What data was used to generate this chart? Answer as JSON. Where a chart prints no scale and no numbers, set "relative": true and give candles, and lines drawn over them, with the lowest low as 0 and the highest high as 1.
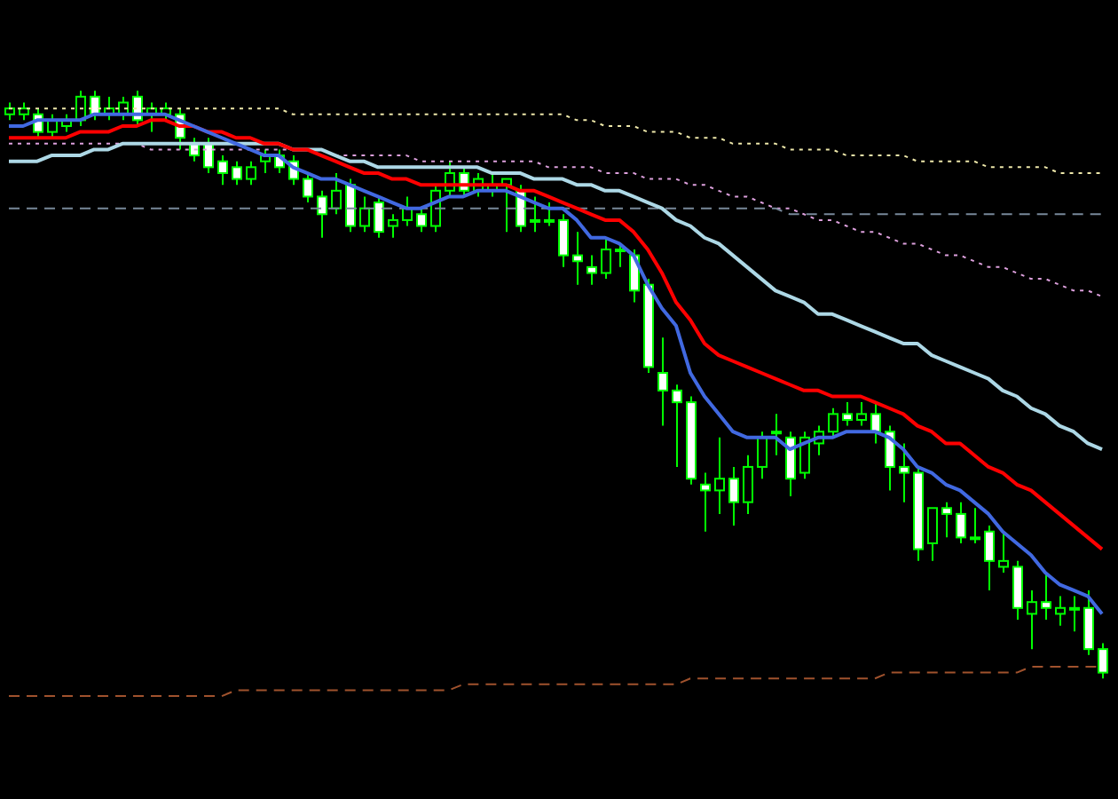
{
  "chart_data": {
    "type": "candlestick",
    "relative": true,
    "tick_labels": false,
    "color": "#00ff00",
    "categories": [
      null,
      null,
      null,
      null,
      null,
      null,
      null,
      null,
      null,
      null,
      null,
      null,
      null,
      null,
      null,
      null,
      null,
      null,
      null,
      null,
      null,
      null,
      null,
      null,
      null,
      null,
      null,
      null,
      null,
      null,
      null,
      null,
      null,
      null,
      null,
      null,
      null,
      null,
      null,
      null,
      null,
      null,
      null,
      null,
      null,
      null,
      null,
      null,
      null,
      null,
      null,
      null,
      null,
      null,
      null,
      null,
      null,
      null,
      null,
      null,
      null,
      null,
      null,
      null,
      null,
      null,
      null,
      null,
      null,
      null,
      null,
      null,
      null,
      null,
      null,
      null,
      null,
      null
    ],
    "ohlc": [
      [
        0.96,
        0.98,
        0.95,
        0.97
      ],
      [
        0.96,
        0.98,
        0.95,
        0.97
      ],
      [
        0.96,
        0.97,
        0.92,
        0.93
      ],
      [
        0.93,
        0.96,
        0.92,
        0.95
      ],
      [
        0.94,
        0.96,
        0.93,
        0.95
      ],
      [
        0.95,
        1,
        0.94,
        0.99
      ],
      [
        0.99,
        1,
        0.95,
        0.96
      ],
      [
        0.96,
        0.99,
        0.95,
        0.97
      ],
      [
        0.96,
        0.99,
        0.95,
        0.98
      ],
      [
        0.99,
        1,
        0.94,
        0.95
      ],
      [
        0.96,
        0.98,
        0.93,
        0.97
      ],
      [
        0.96,
        0.98,
        0.95,
        0.97
      ],
      [
        0.96,
        0.97,
        0.9,
        0.92
      ],
      [
        0.91,
        0.92,
        0.88,
        0.89
      ],
      [
        0.91,
        0.92,
        0.86,
        0.87
      ],
      [
        0.88,
        0.89,
        0.84,
        0.86
      ],
      [
        0.87,
        0.88,
        0.84,
        0.85
      ],
      [
        0.85,
        0.88,
        0.84,
        0.87
      ],
      [
        0.88,
        0.9,
        0.86,
        0.89
      ],
      [
        0.89,
        0.9,
        0.86,
        0.87
      ],
      [
        0.88,
        0.89,
        0.84,
        0.85
      ],
      [
        0.85,
        0.86,
        0.81,
        0.82
      ],
      [
        0.82,
        0.83,
        0.75,
        0.79
      ],
      [
        0.8,
        0.86,
        0.79,
        0.83
      ],
      [
        0.84,
        0.85,
        0.76,
        0.77
      ],
      [
        0.77,
        0.82,
        0.76,
        0.8
      ],
      [
        0.81,
        0.82,
        0.75,
        0.76
      ],
      [
        0.77,
        0.79,
        0.75,
        0.78
      ],
      [
        0.78,
        0.82,
        0.77,
        0.8
      ],
      [
        0.79,
        0.8,
        0.76,
        0.77
      ],
      [
        0.77,
        0.84,
        0.76,
        0.83
      ],
      [
        0.83,
        0.88,
        0.82,
        0.86
      ],
      [
        0.86,
        0.87,
        0.82,
        0.83
      ],
      [
        0.83,
        0.86,
        0.82,
        0.85
      ],
      [
        0.83,
        0.86,
        0.82,
        0.84
      ],
      [
        0.84,
        0.85,
        0.76,
        0.85
      ],
      [
        0.83,
        0.84,
        0.76,
        0.77
      ],
      [
        0.78,
        0.82,
        0.76,
        0.78
      ],
      [
        0.78,
        0.81,
        0.77,
        0.78
      ],
      [
        0.78,
        0.79,
        0.7,
        0.72
      ],
      [
        0.72,
        0.76,
        0.67,
        0.71
      ],
      [
        0.7,
        0.72,
        0.67,
        0.69
      ],
      [
        0.69,
        0.75,
        0.68,
        0.73
      ],
      [
        0.73,
        0.74,
        0.7,
        0.73
      ],
      [
        0.72,
        0.73,
        0.64,
        0.66
      ],
      [
        0.67,
        0.68,
        0.52,
        0.53
      ],
      [
        0.52,
        0.58,
        0.43,
        0.49
      ],
      [
        0.49,
        0.5,
        0.36,
        0.47
      ],
      [
        0.47,
        0.48,
        0.33,
        0.34
      ],
      [
        0.33,
        0.35,
        0.25,
        0.32
      ],
      [
        0.32,
        0.41,
        0.28,
        0.34
      ],
      [
        0.34,
        0.36,
        0.26,
        0.3
      ],
      [
        0.3,
        0.38,
        0.28,
        0.36
      ],
      [
        0.36,
        0.42,
        0.34,
        0.41
      ],
      [
        0.42,
        0.45,
        0.38,
        0.42
      ],
      [
        0.41,
        0.42,
        0.31,
        0.34
      ],
      [
        0.35,
        0.42,
        0.34,
        0.41
      ],
      [
        0.4,
        0.43,
        0.38,
        0.42
      ],
      [
        0.42,
        0.46,
        0.41,
        0.45
      ],
      [
        0.45,
        0.47,
        0.43,
        0.44
      ],
      [
        0.44,
        0.47,
        0.43,
        0.45
      ],
      [
        0.45,
        0.47,
        0.4,
        0.42
      ],
      [
        0.42,
        0.43,
        0.32,
        0.36
      ],
      [
        0.36,
        0.4,
        0.3,
        0.35
      ],
      [
        0.35,
        0.36,
        0.2,
        0.22
      ],
      [
        0.23,
        0.29,
        0.2,
        0.29
      ],
      [
        0.29,
        0.3,
        0.24,
        0.28
      ],
      [
        0.28,
        0.3,
        0.23,
        0.24
      ],
      [
        0.24,
        0.29,
        0.23,
        0.24
      ],
      [
        0.25,
        0.26,
        0.15,
        0.2
      ],
      [
        0.19,
        0.25,
        0.18,
        0.2
      ],
      [
        0.19,
        0.2,
        0.1,
        0.12
      ],
      [
        0.11,
        0.15,
        0.05,
        0.13
      ],
      [
        0.13,
        0.18,
        0.1,
        0.12
      ],
      [
        0.11,
        0.14,
        0.09,
        0.12
      ],
      [
        0.12,
        0.14,
        0.08,
        0.12
      ],
      [
        0.12,
        0.15,
        0.04,
        0.05
      ],
      [
        0.05,
        0.06,
        0,
        0.01
      ]
    ],
    "series": [
      {
        "type": "line",
        "color": "#eee8aa",
        "line_style": "dotted",
        "values": [
          0.97,
          0.97,
          0.97,
          0.97,
          0.97,
          0.97,
          0.97,
          0.97,
          0.97,
          0.97,
          0.97,
          0.97,
          0.97,
          0.97,
          0.97,
          0.97,
          0.97,
          0.97,
          0.97,
          0.97,
          0.96,
          0.96,
          0.96,
          0.96,
          0.96,
          0.96,
          0.96,
          0.96,
          0.96,
          0.96,
          0.96,
          0.96,
          0.96,
          0.96,
          0.96,
          0.96,
          0.96,
          0.96,
          0.96,
          0.96,
          0.95,
          0.95,
          0.94,
          0.94,
          0.94,
          0.93,
          0.93,
          0.93,
          0.92,
          0.92,
          0.92,
          0.91,
          0.91,
          0.91,
          0.91,
          0.9,
          0.9,
          0.9,
          0.9,
          0.89,
          0.89,
          0.89,
          0.89,
          0.89,
          0.88,
          0.88,
          0.88,
          0.88,
          0.88,
          0.87,
          0.87,
          0.87,
          0.87,
          0.87,
          0.86,
          0.86,
          0.86,
          0.86
        ]
      },
      {
        "type": "line",
        "color": "#dda0dd",
        "line_style": "dotted",
        "values": [
          0.91,
          0.91,
          0.91,
          0.91,
          0.91,
          0.91,
          0.91,
          0.91,
          0.91,
          0.91,
          0.9,
          0.9,
          0.9,
          0.9,
          0.9,
          0.9,
          0.9,
          0.9,
          0.9,
          0.9,
          0.9,
          0.9,
          0.9,
          0.89,
          0.89,
          0.89,
          0.89,
          0.89,
          0.89,
          0.88,
          0.88,
          0.88,
          0.88,
          0.88,
          0.88,
          0.88,
          0.88,
          0.88,
          0.87,
          0.87,
          0.87,
          0.87,
          0.86,
          0.86,
          0.86,
          0.85,
          0.85,
          0.85,
          0.84,
          0.84,
          0.83,
          0.82,
          0.82,
          0.81,
          0.8,
          0.8,
          0.79,
          0.78,
          0.78,
          0.77,
          0.76,
          0.76,
          0.75,
          0.74,
          0.74,
          0.73,
          0.72,
          0.72,
          0.71,
          0.7,
          0.7,
          0.69,
          0.68,
          0.68,
          0.67,
          0.66,
          0.66,
          0.65
        ]
      },
      {
        "type": "line",
        "color": "#778899",
        "line_style": "dashed",
        "values": [
          0.8,
          0.8,
          0.8,
          0.8,
          0.8,
          0.8,
          0.8,
          0.8,
          0.8,
          0.8,
          0.8,
          0.8,
          0.8,
          0.8,
          0.8,
          0.8,
          0.8,
          0.8,
          0.8,
          0.8,
          0.8,
          0.8,
          0.8,
          0.8,
          0.8,
          0.8,
          0.8,
          0.8,
          0.8,
          0.8,
          0.8,
          0.8,
          0.8,
          0.8,
          0.8,
          0.8,
          0.8,
          0.8,
          0.8,
          0.8,
          0.8,
          0.8,
          0.8,
          0.8,
          0.8,
          0.8,
          0.8,
          0.8,
          0.8,
          0.8,
          0.8,
          0.8,
          0.8,
          0.8,
          0.8,
          0.79,
          0.79,
          0.79,
          0.79,
          0.79,
          0.79,
          0.79,
          0.79,
          0.79,
          0.79,
          0.79,
          0.79,
          0.79,
          0.79,
          0.79,
          0.79,
          0.79,
          0.79,
          0.79,
          0.79,
          0.79,
          0.79,
          0.79
        ]
      },
      {
        "type": "line",
        "color": "#a0522d",
        "line_style": "dashed",
        "values": [
          -0.03,
          -0.03,
          -0.03,
          -0.03,
          -0.03,
          -0.03,
          -0.03,
          -0.03,
          -0.03,
          -0.03,
          -0.03,
          -0.03,
          -0.03,
          -0.03,
          -0.03,
          -0.03,
          -0.02,
          -0.02,
          -0.02,
          -0.02,
          -0.02,
          -0.02,
          -0.02,
          -0.02,
          -0.02,
          -0.02,
          -0.02,
          -0.02,
          -0.02,
          -0.02,
          -0.02,
          -0.02,
          -0.01,
          -0.01,
          -0.01,
          -0.01,
          -0.01,
          -0.01,
          -0.01,
          -0.01,
          -0.01,
          -0.01,
          -0.01,
          -0.01,
          -0.01,
          -0.01,
          -0.01,
          -0.01,
          0,
          0,
          0,
          0,
          0,
          0,
          0,
          0,
          0,
          0,
          0,
          0,
          0,
          0,
          0.01,
          0.01,
          0.01,
          0.01,
          0.01,
          0.01,
          0.01,
          0.01,
          0.01,
          0.01,
          0.02,
          0.02,
          0.02,
          0.02,
          0.02,
          0.02
        ]
      },
      {
        "type": "line",
        "color": "#add8e6",
        "line_style": "solid",
        "values": [
          0.88,
          0.88,
          0.88,
          0.89,
          0.89,
          0.89,
          0.9,
          0.9,
          0.91,
          0.91,
          0.91,
          0.91,
          0.91,
          0.91,
          0.91,
          0.91,
          0.91,
          0.91,
          0.91,
          0.91,
          0.9,
          0.9,
          0.9,
          0.89,
          0.88,
          0.88,
          0.87,
          0.87,
          0.87,
          0.87,
          0.87,
          0.87,
          0.87,
          0.87,
          0.86,
          0.86,
          0.86,
          0.85,
          0.85,
          0.85,
          0.84,
          0.84,
          0.83,
          0.83,
          0.82,
          0.81,
          0.8,
          0.78,
          0.77,
          0.75,
          0.74,
          0.72,
          0.7,
          0.68,
          0.66,
          0.65,
          0.64,
          0.62,
          0.62,
          0.61,
          0.6,
          0.59,
          0.58,
          0.57,
          0.57,
          0.55,
          0.54,
          0.53,
          0.52,
          0.51,
          0.49,
          0.48,
          0.46,
          0.45,
          0.43,
          0.42,
          0.4,
          0.39
        ]
      },
      {
        "type": "line",
        "color": "#ff0000",
        "line_style": "solid",
        "values": [
          0.92,
          0.92,
          0.92,
          0.92,
          0.92,
          0.93,
          0.93,
          0.93,
          0.94,
          0.94,
          0.95,
          0.95,
          0.94,
          0.94,
          0.93,
          0.93,
          0.92,
          0.92,
          0.91,
          0.91,
          0.9,
          0.9,
          0.89,
          0.88,
          0.87,
          0.86,
          0.86,
          0.85,
          0.85,
          0.84,
          0.84,
          0.84,
          0.84,
          0.84,
          0.84,
          0.84,
          0.83,
          0.83,
          0.82,
          0.81,
          0.8,
          0.79,
          0.78,
          0.78,
          0.76,
          0.73,
          0.69,
          0.64,
          0.61,
          0.57,
          0.55,
          0.54,
          0.53,
          0.52,
          0.51,
          0.5,
          0.49,
          0.49,
          0.48,
          0.48,
          0.48,
          0.47,
          0.46,
          0.45,
          0.43,
          0.42,
          0.4,
          0.4,
          0.38,
          0.36,
          0.35,
          0.33,
          0.32,
          0.3,
          0.28,
          0.26,
          0.24,
          0.22
        ]
      },
      {
        "type": "line",
        "color": "#4169e1",
        "line_style": "solid",
        "values": [
          0.94,
          0.94,
          0.95,
          0.95,
          0.95,
          0.95,
          0.96,
          0.96,
          0.96,
          0.96,
          0.96,
          0.96,
          0.95,
          0.94,
          0.93,
          0.92,
          0.91,
          0.9,
          0.89,
          0.89,
          0.87,
          0.86,
          0.85,
          0.85,
          0.84,
          0.83,
          0.82,
          0.81,
          0.8,
          0.8,
          0.81,
          0.82,
          0.82,
          0.83,
          0.83,
          0.83,
          0.82,
          0.81,
          0.8,
          0.8,
          0.78,
          0.75,
          0.75,
          0.74,
          0.72,
          0.67,
          0.63,
          0.6,
          0.52,
          0.48,
          0.45,
          0.42,
          0.41,
          0.41,
          0.41,
          0.39,
          0.4,
          0.41,
          0.41,
          0.42,
          0.42,
          0.42,
          0.41,
          0.39,
          0.36,
          0.35,
          0.33,
          0.32,
          0.3,
          0.28,
          0.25,
          0.23,
          0.21,
          0.18,
          0.16,
          0.15,
          0.14,
          0.11
        ]
      }
    ]
  }
}
